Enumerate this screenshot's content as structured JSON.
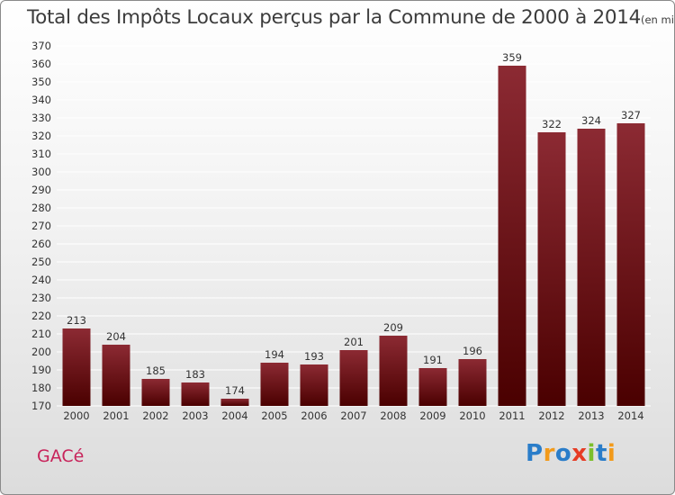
{
  "chart_data": {
    "type": "bar",
    "title": "Total des Impôts Locaux perçus par la Commune de 2000 à 2014",
    "unit_note": "(en milliers d'€)",
    "categories": [
      "2000",
      "2001",
      "2002",
      "2003",
      "2004",
      "2005",
      "2006",
      "2007",
      "2008",
      "2009",
      "2010",
      "2011",
      "2012",
      "2013",
      "2014"
    ],
    "values": [
      213,
      204,
      185,
      183,
      174,
      194,
      193,
      201,
      209,
      191,
      196,
      359,
      322,
      324,
      327
    ],
    "ylim": [
      170,
      370
    ],
    "ytick_step": 10,
    "grid": true,
    "xlabel": "",
    "ylabel": "",
    "bar_color_top": "#8c2a33",
    "bar_color_bottom": "#4a0000"
  },
  "footer": {
    "commune": "GACé",
    "logo_letters": [
      "P",
      "r",
      "o",
      "x",
      "i",
      "t",
      "i"
    ]
  }
}
